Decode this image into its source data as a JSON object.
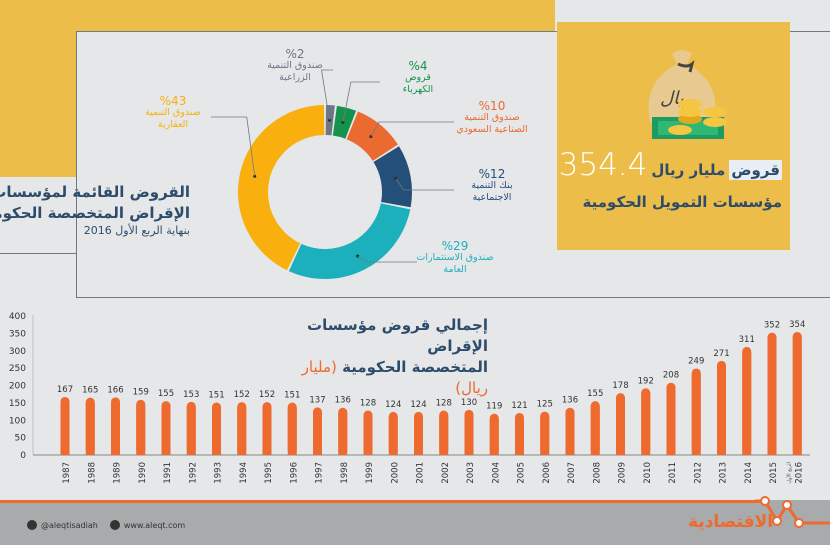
{
  "highlight": {
    "value": "354.4",
    "unit": "مليار ريال",
    "keyword": "قروض",
    "line2": "مؤسسات التمويل الحكومية",
    "bag_text": "ريال"
  },
  "donut_title": {
    "line1": "القروض القائمة لمؤسسات",
    "line2": "الإقراض المتخصصة الحكومية",
    "line3": "بنهاية الربع الأول 2016"
  },
  "bar_title": {
    "line1": "إجمالي قروض مؤسسات الإقراض",
    "line2": "المتخصصة الحكومية",
    "unit": "(مليار ريال)"
  },
  "footer": {
    "twitter": "@aleqtisadiah",
    "web": "www.aleqt.com",
    "logo": "الاقتصادية"
  },
  "colors": {
    "yellow": "#ecbd48",
    "bar": "#ee6a2e",
    "navy": "#2d4c6b"
  },
  "chart_data": [
    {
      "type": "pie",
      "donut": true,
      "slices": [
        {
          "label_line1": "صندوق التنمية",
          "label_line2": "الزراعية",
          "pct_label": "%2",
          "value": 2,
          "color": "#6c7687"
        },
        {
          "label_line1": "قروض",
          "label_line2": "الكهرباء",
          "pct_label": "%4",
          "value": 4,
          "color": "#16934a"
        },
        {
          "label_line1": "صندوق التنمية",
          "label_line2": "الصناعية السعودي",
          "pct_label": "%10",
          "value": 10,
          "color": "#ea6a2f"
        },
        {
          "label_line1": "بنك التنمية",
          "label_line2": "الاجتماعية",
          "pct_label": "%12",
          "value": 12,
          "color": "#244f79"
        },
        {
          "label_line1": "صندوق الاستثمارات",
          "label_line2": "العامة",
          "pct_label": "%29",
          "value": 29,
          "color": "#1cb0bd"
        },
        {
          "label_line1": "صندوق التنمية",
          "label_line2": "العقارية",
          "pct_label": "%43",
          "value": 43,
          "color": "#f9b00f"
        }
      ]
    },
    {
      "type": "bar",
      "ylim": [
        0,
        400
      ],
      "yticks": [
        0,
        50,
        100,
        150,
        200,
        250,
        300,
        350,
        400
      ],
      "grid": false,
      "categories": [
        "1987",
        "1988",
        "1989",
        "1990",
        "1991",
        "1992",
        "1993",
        "1994",
        "1995",
        "1996",
        "1997",
        "1998",
        "1999",
        "2000",
        "2001",
        "2002",
        "2003",
        "2004",
        "2005",
        "2006",
        "2007",
        "2008",
        "2009",
        "2010",
        "2011",
        "2012",
        "2013",
        "2014",
        "2015",
        "2016"
      ],
      "last_category_note": "الربع الأول",
      "values": [
        167,
        165,
        166,
        159,
        155,
        153,
        151,
        152,
        152,
        151,
        137,
        136,
        128,
        124,
        124,
        128,
        130,
        119,
        121,
        125,
        136,
        155,
        178,
        192,
        208,
        249,
        271,
        311,
        352,
        354
      ]
    }
  ]
}
